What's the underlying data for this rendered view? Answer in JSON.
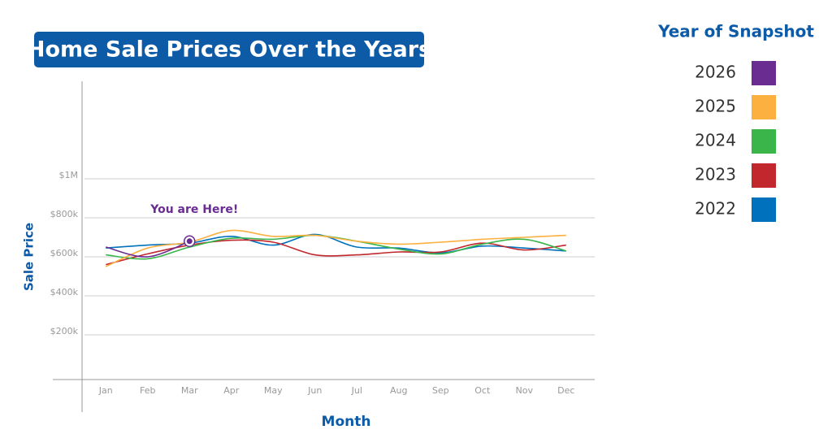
{
  "chart_data": {
    "type": "line",
    "title": "Home Sale Prices Over the Years",
    "y_label": "Sale Price",
    "x_label": "Month",
    "legend_title": "Year of Snapshot",
    "annotation": "You are Here!",
    "categories": [
      "Jan",
      "Feb",
      "Mar",
      "Apr",
      "May",
      "Jun",
      "Jul",
      "Aug",
      "Sep",
      "Oct",
      "Nov",
      "Dec"
    ],
    "ylim": [
      0,
      1500000
    ],
    "yticks": [
      {
        "value": 200000,
        "label": "$200k"
      },
      {
        "value": 400000,
        "label": "$400k"
      },
      {
        "value": 600000,
        "label": "$600k"
      },
      {
        "value": 800000,
        "label": "$800k"
      },
      {
        "value": 1000000,
        "label": "$1M"
      }
    ],
    "grid": true,
    "legend": "right",
    "series": [
      {
        "name": "2026",
        "color": "#6a2c91",
        "values": [
          650000,
          600000,
          680000,
          null,
          null,
          null,
          null,
          null,
          null,
          null,
          null,
          null
        ]
      },
      {
        "name": "2025",
        "color": "#fbb040",
        "values": [
          550000,
          645000,
          675000,
          735000,
          705000,
          710000,
          680000,
          665000,
          675000,
          690000,
          700000,
          710000
        ]
      },
      {
        "name": "2024",
        "color": "#39b54a",
        "values": [
          610000,
          590000,
          650000,
          695000,
          690000,
          710000,
          680000,
          640000,
          615000,
          665000,
          690000,
          630000
        ]
      },
      {
        "name": "2023",
        "color": "#c1272d",
        "values": [
          560000,
          615000,
          660000,
          685000,
          675000,
          610000,
          610000,
          625000,
          625000,
          670000,
          635000,
          660000
        ]
      },
      {
        "name": "2022",
        "color": "#0071bc",
        "values": [
          645000,
          660000,
          670000,
          705000,
          660000,
          715000,
          650000,
          645000,
          620000,
          655000,
          645000,
          630000
        ]
      }
    ]
  }
}
